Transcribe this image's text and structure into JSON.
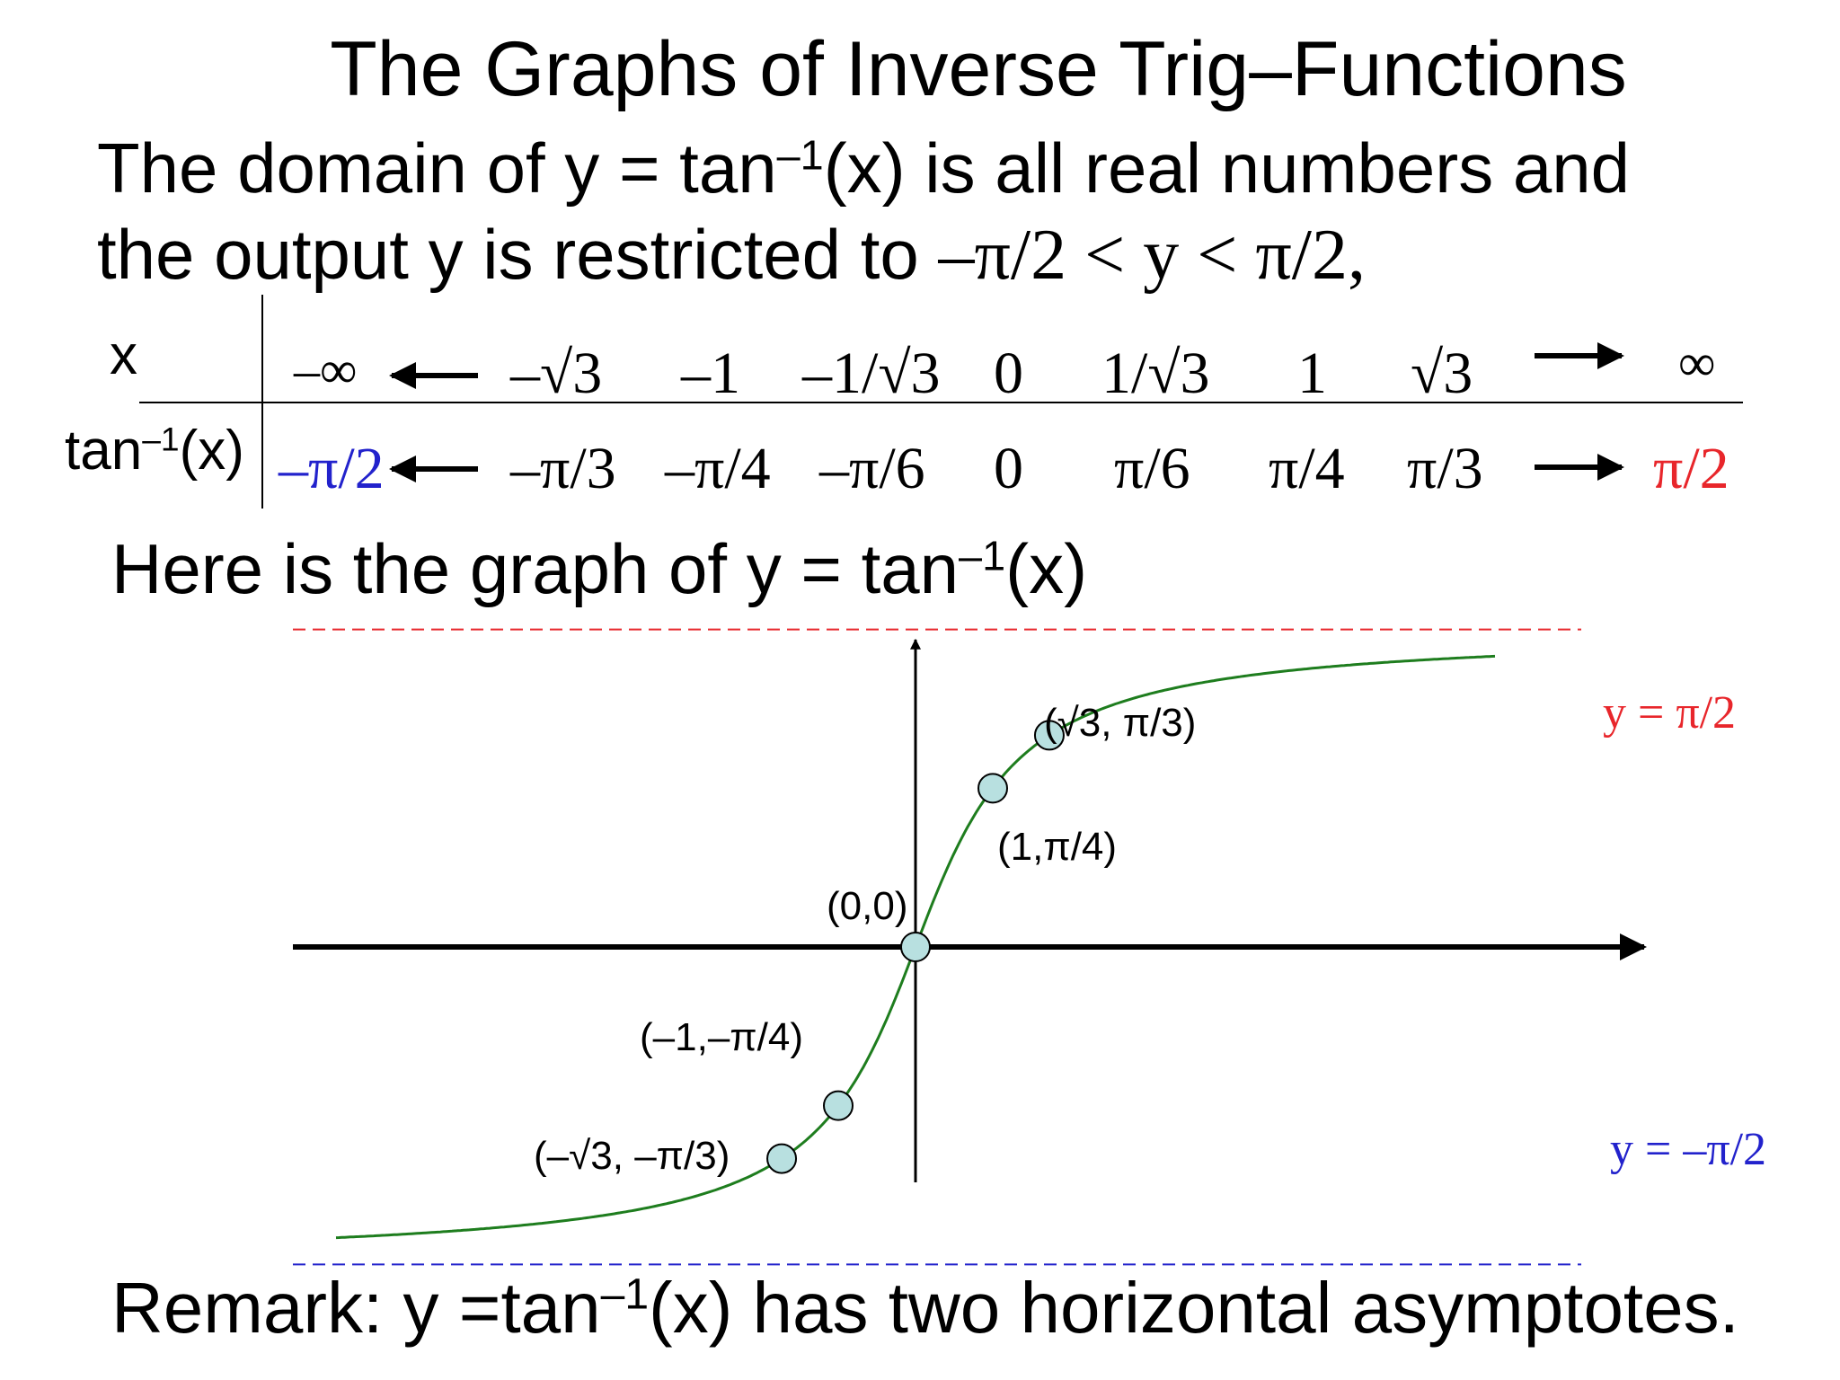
{
  "title": "The Graphs of Inverse Trig–Functions",
  "intro": {
    "line1_pre": "The domain of y = tan",
    "line1_sup": "–1",
    "line1_post": "(x) is all real numbers and",
    "line2_pre": "the output y is restricted to ",
    "line2_math": "–π/2 < y < π/2,"
  },
  "table": {
    "x_header": "x",
    "y_header_pre": "tan",
    "y_header_sup": "–1",
    "y_header_post": "(x)",
    "x_values": [
      "–∞",
      "–√3",
      "–1",
      "–1/√3",
      "0",
      "1/√3",
      "1",
      "√3",
      "∞"
    ],
    "y_values": [
      "–π/2",
      "–π/3",
      "–π/4",
      "–π/6",
      "0",
      "π/6",
      "π/4",
      "π/3",
      "π/2"
    ]
  },
  "graph_heading": {
    "pre": "Here is the graph of y = tan",
    "sup": "–1",
    "post": "(x)"
  },
  "chart_data": {
    "type": "line",
    "function": "y = tan^-1(x)",
    "points": [
      {
        "label": "(–√3, –π/3)",
        "x": -1.732,
        "y": -1.047
      },
      {
        "label": "(–1,–π/4)",
        "x": -1,
        "y": -0.785
      },
      {
        "label": "(0,0)",
        "x": 0,
        "y": 0
      },
      {
        "label": "(1,π/4)",
        "x": 1,
        "y": 0.785
      },
      {
        "label": "(√3, π/3)",
        "x": 1.732,
        "y": 1.047
      }
    ],
    "asymptotes": [
      {
        "label": "y = π/2",
        "y": 1.5708,
        "color": "#e8262b"
      },
      {
        "label": "y = –π/2",
        "y": -1.5708,
        "color": "#2222cc"
      }
    ],
    "xlim": [
      -7.5,
      8.5
    ],
    "ylim": [
      -1.85,
      2.0
    ],
    "curve_x_range": [
      -7.5,
      7.5
    ],
    "colors": {
      "curve": "#1e7d1e",
      "point_fill": "#b8e0e0",
      "axis": "#000000"
    }
  },
  "remark": {
    "pre": "Remark: y =tan",
    "sup": "–1",
    "post": "(x) has two horizontal asymptotes."
  },
  "colors": {
    "neg_limit": "#2222cc",
    "pos_limit": "#e8262b"
  }
}
